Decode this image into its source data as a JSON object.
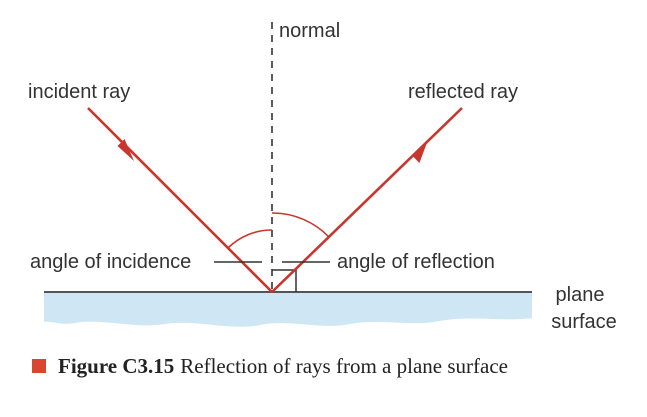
{
  "labels": {
    "normal": "normal",
    "incident_ray": "incident ray",
    "reflected_ray": "reflected ray",
    "angle_of_incidence": "angle of incidence",
    "angle_of_reflection": "angle of reflection",
    "plane_line1": "plane",
    "plane_line2": "surface"
  },
  "caption": {
    "number": "Figure C3.15",
    "text": "Reflection of rays from a plane surface"
  },
  "colors": {
    "ray": "#c8372d",
    "surface_fill": "#cfe6f4",
    "surface_line": "#555555",
    "normal_line": "#333333",
    "caption_marker": "#d9452f"
  }
}
